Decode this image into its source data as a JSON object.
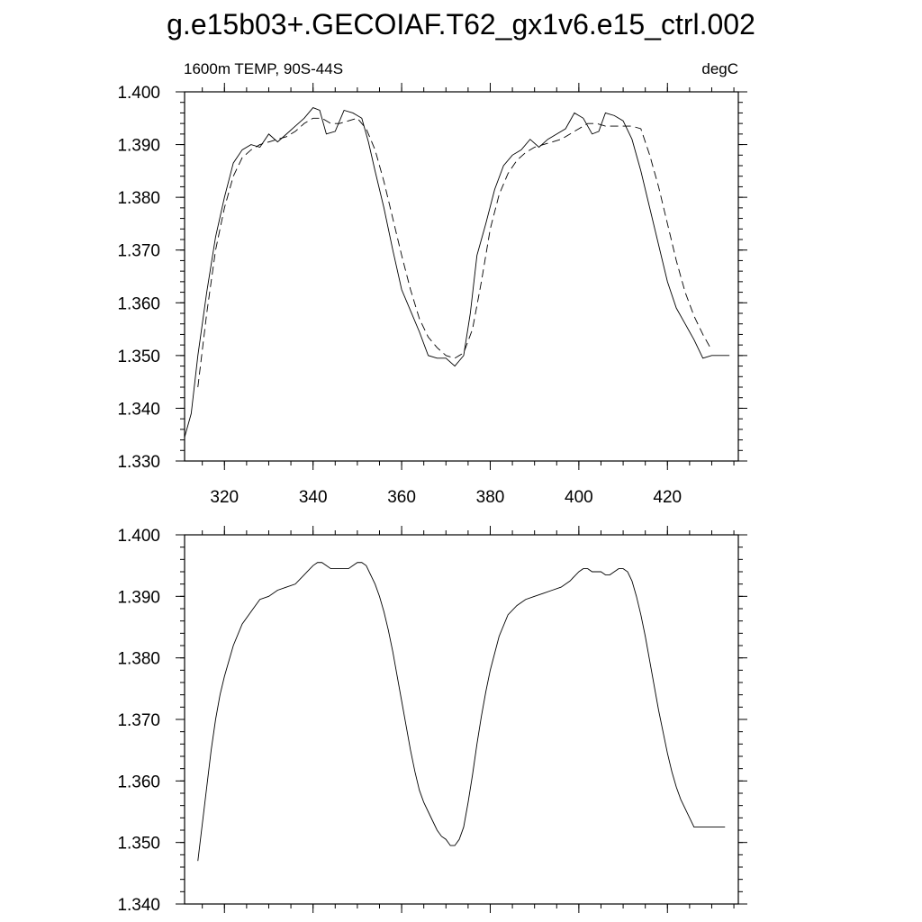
{
  "title": "g.e15b03+.GECOIAF.T62_gx1v6.e15_ctrl.002",
  "chart_data": [
    {
      "type": "line",
      "title": "",
      "left_label": "1600m TEMP, 90S-44S",
      "right_label": "degC",
      "xlim": [
        311,
        436
      ],
      "ylim": [
        1.33,
        1.4
      ],
      "xticks": [
        320,
        340,
        360,
        380,
        400,
        420
      ],
      "xtick_labels": [
        "320",
        "340",
        "360",
        "380",
        "400",
        "420"
      ],
      "yticks": [
        1.33,
        1.34,
        1.35,
        1.36,
        1.37,
        1.38,
        1.39,
        1.4
      ],
      "ytick_labels": [
        "1.330",
        "1.340",
        "1.350",
        "1.360",
        "1.370",
        "1.380",
        "1.390",
        "1.400"
      ],
      "series": [
        {
          "style": "solid",
          "x": [
            311,
            312.5,
            314,
            316,
            318,
            320,
            322,
            324,
            326,
            328,
            330,
            332,
            334,
            336,
            338,
            340,
            341.5,
            343,
            345,
            347,
            349,
            351,
            352.5,
            354,
            356,
            358,
            360,
            362,
            364,
            366,
            368,
            370,
            372,
            374,
            375.5,
            377,
            379,
            381,
            383,
            385,
            387,
            389,
            391,
            393,
            395,
            397,
            399,
            401,
            403,
            404.5,
            406,
            408,
            410,
            412,
            414,
            416,
            418,
            420,
            422,
            424,
            426,
            428,
            430,
            432,
            434
          ],
          "y": [
            1.3345,
            1.339,
            1.35,
            1.362,
            1.3725,
            1.38,
            1.3865,
            1.389,
            1.39,
            1.3895,
            1.392,
            1.3905,
            1.392,
            1.3935,
            1.395,
            1.397,
            1.3965,
            1.392,
            1.3925,
            1.3965,
            1.396,
            1.395,
            1.3905,
            1.385,
            1.378,
            1.37,
            1.3625,
            1.3585,
            1.3545,
            1.35,
            1.3495,
            1.3495,
            1.348,
            1.35,
            1.358,
            1.369,
            1.375,
            1.3815,
            1.386,
            1.388,
            1.389,
            1.391,
            1.3895,
            1.391,
            1.392,
            1.393,
            1.396,
            1.395,
            1.392,
            1.3925,
            1.396,
            1.3955,
            1.3945,
            1.391,
            1.385,
            1.378,
            1.371,
            1.364,
            1.359,
            1.356,
            1.353,
            1.3495,
            1.35,
            1.35,
            1.35
          ]
        },
        {
          "style": "dashed",
          "x": [
            314,
            316,
            318,
            320,
            322,
            324,
            326,
            328,
            330,
            332,
            334,
            336,
            338,
            340,
            342,
            344,
            346,
            348,
            350,
            352,
            354,
            356,
            358,
            360,
            362,
            364,
            366,
            368,
            370,
            372,
            374,
            376,
            378,
            380,
            382,
            384,
            386,
            388,
            390,
            392,
            394,
            396,
            398,
            400,
            402,
            404,
            406,
            408,
            410,
            412,
            414,
            416,
            418,
            420,
            422,
            424,
            426,
            428,
            430
          ],
          "y": [
            1.344,
            1.358,
            1.37,
            1.378,
            1.384,
            1.3875,
            1.389,
            1.39,
            1.3905,
            1.391,
            1.3915,
            1.3925,
            1.394,
            1.395,
            1.395,
            1.394,
            1.394,
            1.3945,
            1.395,
            1.393,
            1.389,
            1.383,
            1.376,
            1.369,
            1.3625,
            1.357,
            1.3535,
            1.3515,
            1.35,
            1.3495,
            1.3505,
            1.355,
            1.364,
            1.374,
            1.3805,
            1.3845,
            1.387,
            1.3885,
            1.3895,
            1.39,
            1.3905,
            1.391,
            1.392,
            1.393,
            1.394,
            1.394,
            1.3935,
            1.3935,
            1.3935,
            1.3935,
            1.393,
            1.388,
            1.382,
            1.375,
            1.368,
            1.362,
            1.3575,
            1.354,
            1.351
          ]
        }
      ]
    },
    {
      "type": "line",
      "title": "",
      "xlim": [
        311,
        436
      ],
      "ylim": [
        1.34,
        1.4
      ],
      "xticks": [
        320,
        340,
        360,
        380,
        400,
        420
      ],
      "yticks": [
        1.34,
        1.35,
        1.36,
        1.37,
        1.38,
        1.39,
        1.4
      ],
      "ytick_labels": [
        "1.340",
        "1.350",
        "1.360",
        "1.370",
        "1.380",
        "1.390",
        "1.400"
      ],
      "series": [
        {
          "style": "solid",
          "x": [
            314,
            315,
            316,
            317,
            318,
            319,
            320,
            322,
            324,
            326,
            328,
            330,
            332,
            334,
            336,
            338,
            340,
            341,
            342,
            343,
            344,
            345,
            346,
            347,
            348,
            349,
            350,
            351,
            352,
            353,
            354,
            355,
            356,
            357,
            358,
            359,
            360,
            361,
            362,
            363,
            364,
            365,
            366,
            367,
            368,
            369,
            370,
            371,
            372,
            373,
            374,
            375,
            376,
            377,
            378,
            379,
            380,
            382,
            384,
            386,
            388,
            390,
            392,
            394,
            396,
            398,
            400,
            401,
            402,
            403,
            404,
            405,
            406,
            407,
            408,
            409,
            410,
            411,
            412,
            413,
            414,
            415,
            416,
            417,
            418,
            419,
            420,
            421,
            422,
            423,
            424,
            425,
            426,
            427,
            428,
            429,
            430,
            431,
            432,
            433
          ],
          "y": [
            1.347,
            1.353,
            1.359,
            1.365,
            1.37,
            1.374,
            1.377,
            1.382,
            1.3855,
            1.3875,
            1.3895,
            1.39,
            1.391,
            1.3915,
            1.392,
            1.3935,
            1.395,
            1.3955,
            1.3955,
            1.395,
            1.3945,
            1.3945,
            1.3945,
            1.3945,
            1.3945,
            1.395,
            1.3955,
            1.3955,
            1.395,
            1.3935,
            1.392,
            1.39,
            1.3875,
            1.3845,
            1.381,
            1.377,
            1.373,
            1.369,
            1.365,
            1.3615,
            1.3585,
            1.3565,
            1.355,
            1.3535,
            1.352,
            1.351,
            1.3505,
            1.3495,
            1.3495,
            1.3505,
            1.3525,
            1.3565,
            1.361,
            1.366,
            1.3705,
            1.3745,
            1.378,
            1.3835,
            1.387,
            1.3885,
            1.3895,
            1.39,
            1.3905,
            1.391,
            1.3915,
            1.3925,
            1.394,
            1.3945,
            1.3945,
            1.394,
            1.394,
            1.394,
            1.3935,
            1.3935,
            1.394,
            1.3945,
            1.3945,
            1.394,
            1.3925,
            1.39,
            1.387,
            1.3835,
            1.3795,
            1.3755,
            1.3715,
            1.368,
            1.3645,
            1.3615,
            1.359,
            1.357,
            1.3555,
            1.354,
            1.3525,
            1.3525,
            1.3525,
            1.3525,
            1.3525,
            1.3525,
            1.3525,
            1.3525
          ]
        }
      ]
    }
  ]
}
